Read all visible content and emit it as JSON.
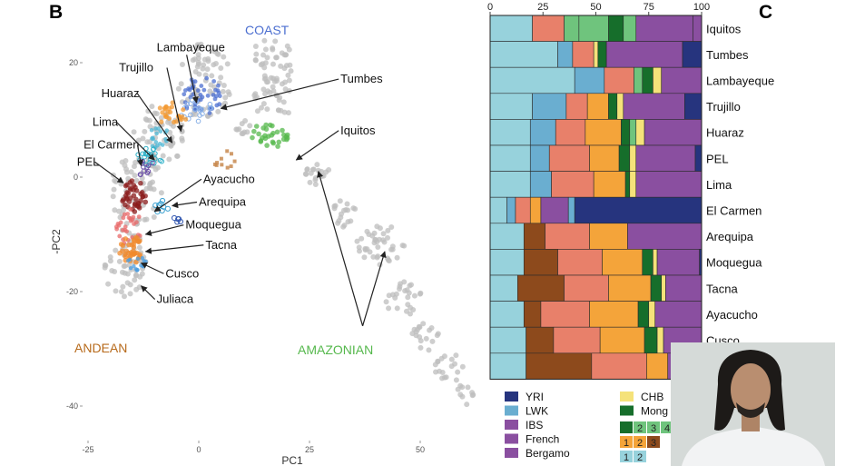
{
  "panels": {
    "left_letter": "B",
    "right_letter": "C"
  },
  "colors": {
    "grey": "#bdbdbd",
    "coast": "#4c6fd0",
    "andean": "#b76a1b",
    "amazonian": "#55b84c",
    "bars": {
      "c1": "#97d2dc",
      "c2": "#6aaed0",
      "c3": "#e8806a",
      "c4": "#f4a43a",
      "c5": "#8d4a1c",
      "c6": "#166e2b",
      "c7": "#6fc47d",
      "c8": "#f5e27a",
      "c9": "#8a4fa0",
      "c10": "#26347e"
    }
  },
  "chart_data": [
    {
      "type": "scatter",
      "xlabel": "PC1",
      "ylabel": "-PC2",
      "xticks": [
        -25,
        0,
        25,
        50
      ],
      "yticks": [
        20,
        0,
        -20,
        -40
      ],
      "xlim": [
        -30,
        60
      ],
      "ylim": [
        -45,
        24
      ],
      "group_labels": [
        {
          "text": "COAST",
          "color": "coast"
        },
        {
          "text": "ANDEAN",
          "color": "andean"
        },
        {
          "text": "AMAZONIAN",
          "color": "amazonian"
        }
      ],
      "annotations": [
        {
          "text": "Lambayeque",
          "label": [
            -9.5,
            22
          ],
          "point": [
            -0.5,
            13
          ]
        },
        {
          "text": "Tumbes",
          "label": [
            32,
            16.5
          ],
          "point": [
            5,
            12
          ]
        },
        {
          "text": "Trujillo",
          "label": [
            -18,
            18.5
          ],
          "point": [
            -4,
            8
          ]
        },
        {
          "text": "Huaraz",
          "label": [
            -22,
            14
          ],
          "point": [
            -6,
            6
          ]
        },
        {
          "text": "Iquitos",
          "label": [
            32,
            7.5
          ],
          "point": [
            22,
            3
          ]
        },
        {
          "text": "Lima",
          "label": [
            -24,
            9
          ],
          "point": [
            -10,
            3
          ]
        },
        {
          "text": "El Carmen",
          "label": [
            -26,
            5
          ],
          "point": [
            -13,
            2
          ]
        },
        {
          "text": "PEL",
          "label": [
            -27.5,
            2
          ],
          "point": [
            -17,
            -1
          ]
        },
        {
          "text": "Ayacucho",
          "label": [
            1,
            -1
          ],
          "point": [
            -10,
            -6
          ]
        },
        {
          "text": "Arequipa",
          "label": [
            0,
            -5
          ],
          "point": [
            -6,
            -5
          ]
        },
        {
          "text": "Moquegua",
          "label": [
            -3,
            -9
          ],
          "point": [
            -12,
            -10
          ]
        },
        {
          "text": "Tacna",
          "label": [
            1.5,
            -12.5
          ],
          "point": [
            -12,
            -13
          ]
        },
        {
          "text": "Cusco",
          "label": [
            -7.5,
            -17.5
          ],
          "point": [
            -13,
            -15
          ]
        },
        {
          "text": "Juliaca",
          "label": [
            -9.5,
            -22
          ],
          "point": [
            -13,
            -19
          ]
        }
      ],
      "amazonian_arrows": {
        "label": [
          37,
          -26
        ],
        "targets": [
          [
            27,
            1
          ],
          [
            42,
            -13
          ]
        ]
      }
    },
    {
      "type": "bar",
      "orientation": "horizontal",
      "xticks": [
        0,
        25,
        50,
        75,
        100
      ],
      "xlim": [
        0,
        100
      ],
      "categories": [
        "Iquitos",
        "Tumbes",
        "Lambayeque",
        "Trujillo",
        "Huaraz",
        "PEL",
        "Lima",
        "El Carmen",
        "Arequipa",
        "Moquegua",
        "Tacna",
        "Ayacucho",
        "Cusco",
        ""
      ],
      "rows": [
        [
          [
            "c1",
            20
          ],
          [
            "c3",
            15
          ],
          [
            "c7",
            7
          ],
          [
            "c7",
            14
          ],
          [
            "c6",
            7
          ],
          [
            "c7",
            6
          ],
          [
            "c9",
            27
          ],
          [
            "c9",
            4
          ]
        ],
        [
          [
            "c1",
            32
          ],
          [
            "c2",
            7
          ],
          [
            "c3",
            10
          ],
          [
            "c8",
            2
          ],
          [
            "c6",
            4
          ],
          [
            "c9",
            36
          ],
          [
            "c10",
            9
          ]
        ],
        [
          [
            "c1",
            40
          ],
          [
            "c2",
            14
          ],
          [
            "c3",
            14
          ],
          [
            "c7",
            4
          ],
          [
            "c6",
            5
          ],
          [
            "c8",
            4
          ],
          [
            "c9",
            19
          ]
        ],
        [
          [
            "c1",
            20
          ],
          [
            "c2",
            16
          ],
          [
            "c3",
            10
          ],
          [
            "c4",
            10
          ],
          [
            "c6",
            4
          ],
          [
            "c8",
            3
          ],
          [
            "c9",
            29
          ],
          [
            "c10",
            8
          ]
        ],
        [
          [
            "c1",
            19
          ],
          [
            "c2",
            12
          ],
          [
            "c3",
            14
          ],
          [
            "c4",
            17
          ],
          [
            "c6",
            4
          ],
          [
            "c7",
            3
          ],
          [
            "c8",
            4
          ],
          [
            "c9",
            27
          ]
        ],
        [
          [
            "c1",
            19
          ],
          [
            "c2",
            9
          ],
          [
            "c3",
            19
          ],
          [
            "c4",
            14
          ],
          [
            "c6",
            5
          ],
          [
            "c8",
            3
          ],
          [
            "c9",
            28
          ],
          [
            "c10",
            3
          ]
        ],
        [
          [
            "c1",
            19
          ],
          [
            "c2",
            10
          ],
          [
            "c3",
            20
          ],
          [
            "c4",
            15
          ],
          [
            "c6",
            2
          ],
          [
            "c8",
            3
          ],
          [
            "c9",
            31
          ]
        ],
        [
          [
            "c1",
            8
          ],
          [
            "c2",
            4
          ],
          [
            "c3",
            7
          ],
          [
            "c4",
            5
          ],
          [
            "c9",
            13
          ],
          [
            "c2",
            3
          ],
          [
            "c10",
            60
          ]
        ],
        [
          [
            "c1",
            16
          ],
          [
            "c5",
            10
          ],
          [
            "c3",
            21
          ],
          [
            "c4",
            18
          ],
          [
            "c9",
            35
          ]
        ],
        [
          [
            "c1",
            16
          ],
          [
            "c5",
            16
          ],
          [
            "c3",
            21
          ],
          [
            "c4",
            19
          ],
          [
            "c6",
            5
          ],
          [
            "c8",
            2
          ],
          [
            "c9",
            20
          ],
          [
            "c10",
            1
          ]
        ],
        [
          [
            "c1",
            13
          ],
          [
            "c5",
            22
          ],
          [
            "c3",
            21
          ],
          [
            "c4",
            20
          ],
          [
            "c6",
            5
          ],
          [
            "c8",
            2
          ],
          [
            "c9",
            17
          ]
        ],
        [
          [
            "c1",
            16
          ],
          [
            "c5",
            8
          ],
          [
            "c3",
            23
          ],
          [
            "c4",
            23
          ],
          [
            "c6",
            5
          ],
          [
            "c8",
            3
          ],
          [
            "c9",
            22
          ]
        ],
        [
          [
            "c1",
            17
          ],
          [
            "c5",
            13
          ],
          [
            "c3",
            22
          ],
          [
            "c4",
            21
          ],
          [
            "c6",
            6
          ],
          [
            "c8",
            3
          ],
          [
            "c9",
            18
          ]
        ],
        [
          [
            "c1",
            17
          ],
          [
            "c5",
            31
          ],
          [
            "c3",
            26
          ],
          [
            "c4",
            10
          ],
          [
            "c9",
            16
          ]
        ]
      ],
      "legend": [
        {
          "label": "YRI",
          "color": "c10"
        },
        {
          "label": "LWK",
          "color": "c2"
        },
        {
          "label": "IBS",
          "color": "c9"
        },
        {
          "label": "French",
          "color": "c9"
        },
        {
          "label": "Bergamo",
          "color": "c9"
        },
        {
          "label": "CHB",
          "color": "c8"
        },
        {
          "label": "Mong",
          "color": "c6"
        }
      ],
      "legend_boxes": [
        {
          "color": "c6",
          "text": ""
        },
        {
          "color": "c7",
          "text": "2"
        },
        {
          "color": "c7",
          "text": "3"
        },
        {
          "color": "c7",
          "text": "4"
        },
        {
          "color": "c4",
          "text": "1"
        },
        {
          "color": "c4",
          "text": "2"
        },
        {
          "color": "c5",
          "text": "3"
        },
        {
          "color": "c1",
          "text": "1"
        },
        {
          "color": "c1",
          "text": "2"
        }
      ]
    }
  ]
}
